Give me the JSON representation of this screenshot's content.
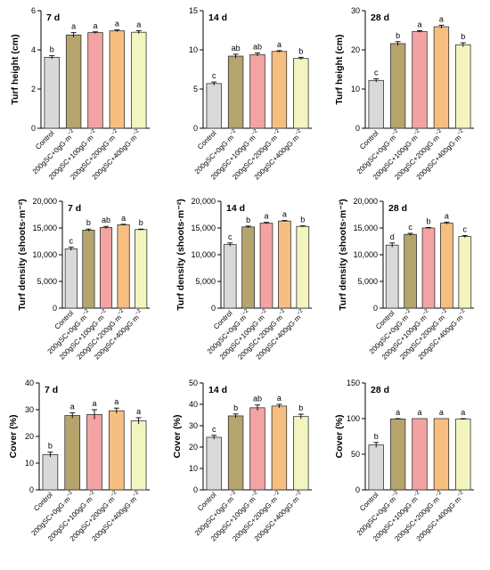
{
  "chart_data": [
    {
      "type": "bar",
      "title": "7 d",
      "ylabel": "Turf height (cm)",
      "ylim": [
        0,
        6
      ],
      "yticks": [
        0,
        2,
        4,
        6
      ],
      "categories": [
        "Control",
        "200gSC+0gG·m",
        "200gSC+100gG·m",
        "200gSC+200gG·m",
        "200gSC+400gG·m"
      ],
      "category_superscript": "−2",
      "values": [
        3.62,
        4.76,
        4.88,
        4.97,
        4.9
      ],
      "errors": [
        0.08,
        0.12,
        0.04,
        0.05,
        0.08
      ],
      "significance": [
        "b",
        "a",
        "a",
        "a",
        "a"
      ]
    },
    {
      "type": "bar",
      "title": "14 d",
      "ylabel": "",
      "ylim": [
        0,
        15
      ],
      "yticks": [
        0,
        5,
        10,
        15
      ],
      "categories": [
        "Control",
        "200gSC+0gG·m",
        "200gSC+100gG·m",
        "200gSC+200gG·m",
        "200gSC+400gG·m"
      ],
      "category_superscript": "−2",
      "values": [
        5.7,
        9.2,
        9.4,
        9.8,
        8.9
      ],
      "errors": [
        0.2,
        0.25,
        0.2,
        0.1,
        0.15
      ],
      "significance": [
        "c",
        "ab",
        "ab",
        "a",
        "b"
      ]
    },
    {
      "type": "bar",
      "title": "28 d",
      "ylabel": "Turf height (cm)",
      "ylim": [
        0,
        30
      ],
      "yticks": [
        0,
        10,
        20,
        30
      ],
      "categories": [
        "Control",
        "200gSC+0gG·m",
        "200gSC+100gG·m",
        "200gSC+200gG·m",
        "200gSC+400gG·m"
      ],
      "category_superscript": "−2",
      "values": [
        12.2,
        21.6,
        24.7,
        25.9,
        21.3
      ],
      "errors": [
        0.4,
        0.5,
        0.2,
        0.4,
        0.5
      ],
      "significance": [
        "c",
        "b",
        "a",
        "a",
        "b"
      ]
    },
    {
      "type": "bar",
      "title": "7 d",
      "ylabel": "Turf density (shoots·m⁻²)",
      "ylim": [
        0,
        20000
      ],
      "yticks": [
        0,
        5000,
        10000,
        15000,
        20000
      ],
      "ytick_labels": [
        "0",
        "5,000",
        "10,000",
        "15,000",
        "20,000"
      ],
      "categories": [
        "Control",
        "200gSC+0gG·m",
        "200gSC+100gG·m",
        "200gSC+200gG·m",
        "200gSC+400gG·m"
      ],
      "category_superscript": "−2",
      "values": [
        11100,
        14600,
        15100,
        15600,
        14700
      ],
      "errors": [
        300,
        200,
        200,
        100,
        100
      ],
      "significance": [
        "c",
        "b",
        "ab",
        "a",
        "b"
      ]
    },
    {
      "type": "bar",
      "title": "14 d",
      "ylabel": "Turf density (shoots·m⁻²)",
      "ylim": [
        0,
        20000
      ],
      "yticks": [
        0,
        5000,
        10000,
        15000,
        20000
      ],
      "ytick_labels": [
        "0",
        "5,000",
        "10,000",
        "15,000",
        "20,000"
      ],
      "categories": [
        "Control",
        "200gSC+0gG·m",
        "200gSC+100gG·m",
        "200gSC+200gG·m",
        "200gSC+400gG·m"
      ],
      "category_superscript": "−2",
      "values": [
        11900,
        15200,
        15900,
        16300,
        15300
      ],
      "errors": [
        300,
        150,
        150,
        100,
        100
      ],
      "significance": [
        "c",
        "b",
        "a",
        "a",
        "b"
      ]
    },
    {
      "type": "bar",
      "title": "28 d",
      "ylabel": "Turf density (shoots·m⁻²)",
      "ylim": [
        0,
        20000
      ],
      "yticks": [
        0,
        5000,
        10000,
        15000,
        20000
      ],
      "ytick_labels": [
        "0",
        "5,000",
        "10,000",
        "15,000",
        "20,000"
      ],
      "categories": [
        "Control",
        "200gSC+0gG·m",
        "200gSC+100gG·m",
        "200gSC+200gG·m",
        "200gSC+400gG·m"
      ],
      "category_superscript": "−2",
      "values": [
        11800,
        13800,
        15000,
        15900,
        13400
      ],
      "errors": [
        400,
        200,
        100,
        200,
        200
      ],
      "significance": [
        "d",
        "c",
        "b",
        "a",
        "c"
      ]
    },
    {
      "type": "bar",
      "title": "7 d",
      "ylabel": "Cover (%)",
      "ylim": [
        0,
        40
      ],
      "yticks": [
        0,
        10,
        20,
        30,
        40
      ],
      "categories": [
        "Control",
        "200gSC+0gG·m",
        "200gSC+100gG·m",
        "200gSC+200gG·m",
        "200gSC+400gG·m"
      ],
      "category_superscript": "−2",
      "values": [
        13.2,
        27.8,
        28.2,
        29.6,
        25.8
      ],
      "errors": [
        0.9,
        1.0,
        1.8,
        1.0,
        1.2
      ],
      "significance": [
        "b",
        "a",
        "a",
        "a",
        "a"
      ]
    },
    {
      "type": "bar",
      "title": "14 d",
      "ylabel": "Cover (%)",
      "ylim": [
        0,
        50
      ],
      "yticks": [
        0,
        10,
        20,
        30,
        40,
        50
      ],
      "categories": [
        "Control",
        "200gSC+0gG·m",
        "200gSC+100gG·m",
        "200gSC+200gG·m",
        "200gSC+400gG·m"
      ],
      "category_superscript": "−2",
      "values": [
        24.6,
        34.6,
        38.4,
        39.2,
        34.3
      ],
      "errors": [
        0.9,
        0.9,
        1.3,
        0.8,
        1.1
      ],
      "significance": [
        "c",
        "b",
        "ab",
        "a",
        "b"
      ]
    },
    {
      "type": "bar",
      "title": "28 d",
      "ylabel": "Cover (%)",
      "ylim": [
        0,
        150
      ],
      "yticks": [
        0,
        50,
        100,
        150
      ],
      "categories": [
        "Control",
        "200gSC+0gG·m",
        "200gSC+100gG·m",
        "200gSC+200gG·m",
        "200gSC+400gG·m"
      ],
      "category_superscript": "−2",
      "values": [
        63,
        99.5,
        100,
        100,
        99.3
      ],
      "errors": [
        3.5,
        0.5,
        0,
        0,
        0.6
      ],
      "significance": [
        "b",
        "a",
        "a",
        "a",
        "a"
      ]
    }
  ],
  "bar_colors": [
    "#d9d9d9",
    "#b5a56d",
    "#f4a3a3",
    "#f7bf7f",
    "#f3f5bf"
  ]
}
